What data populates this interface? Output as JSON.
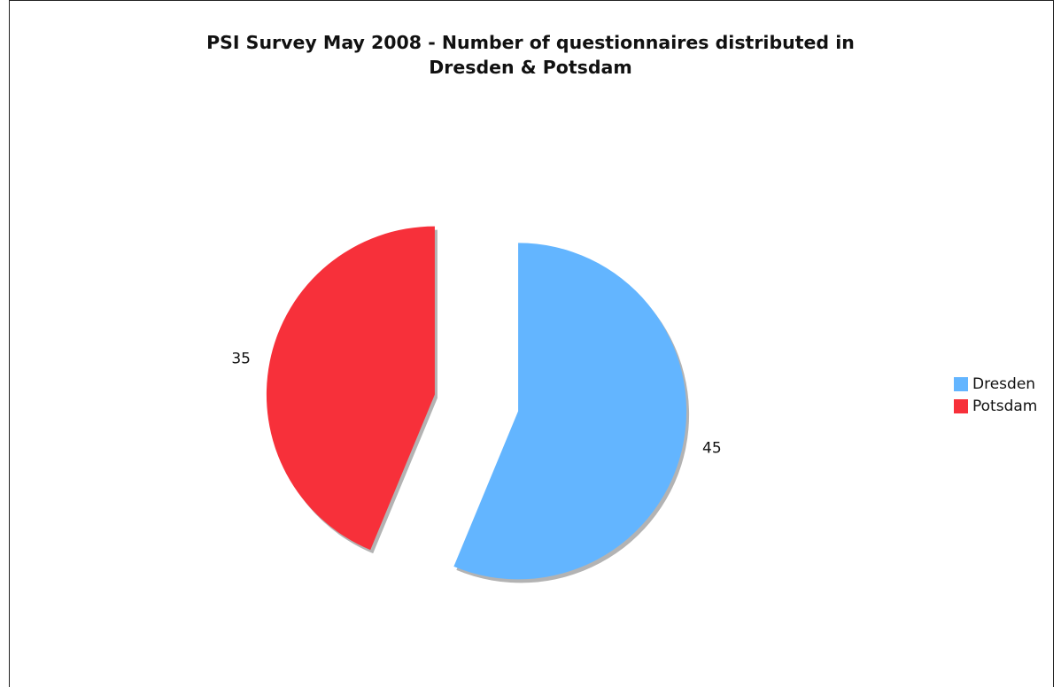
{
  "chart_data": {
    "type": "pie",
    "title_lines": [
      "PSI Survey May 2008  - Number of questionnaires distributed in",
      "Dresden & Potsdam"
    ],
    "slices": [
      {
        "label": "Dresden",
        "value": 45,
        "color": "#63b5ff",
        "value_label": "45"
      },
      {
        "label": "Potsdam",
        "value": 35,
        "color": "#f7303a",
        "value_label": "35"
      }
    ],
    "exploded": true,
    "legend": {
      "position": "right",
      "items": [
        {
          "label": "Dresden",
          "color": "#63b5ff"
        },
        {
          "label": "Potsdam",
          "color": "#f7303a"
        }
      ]
    }
  }
}
